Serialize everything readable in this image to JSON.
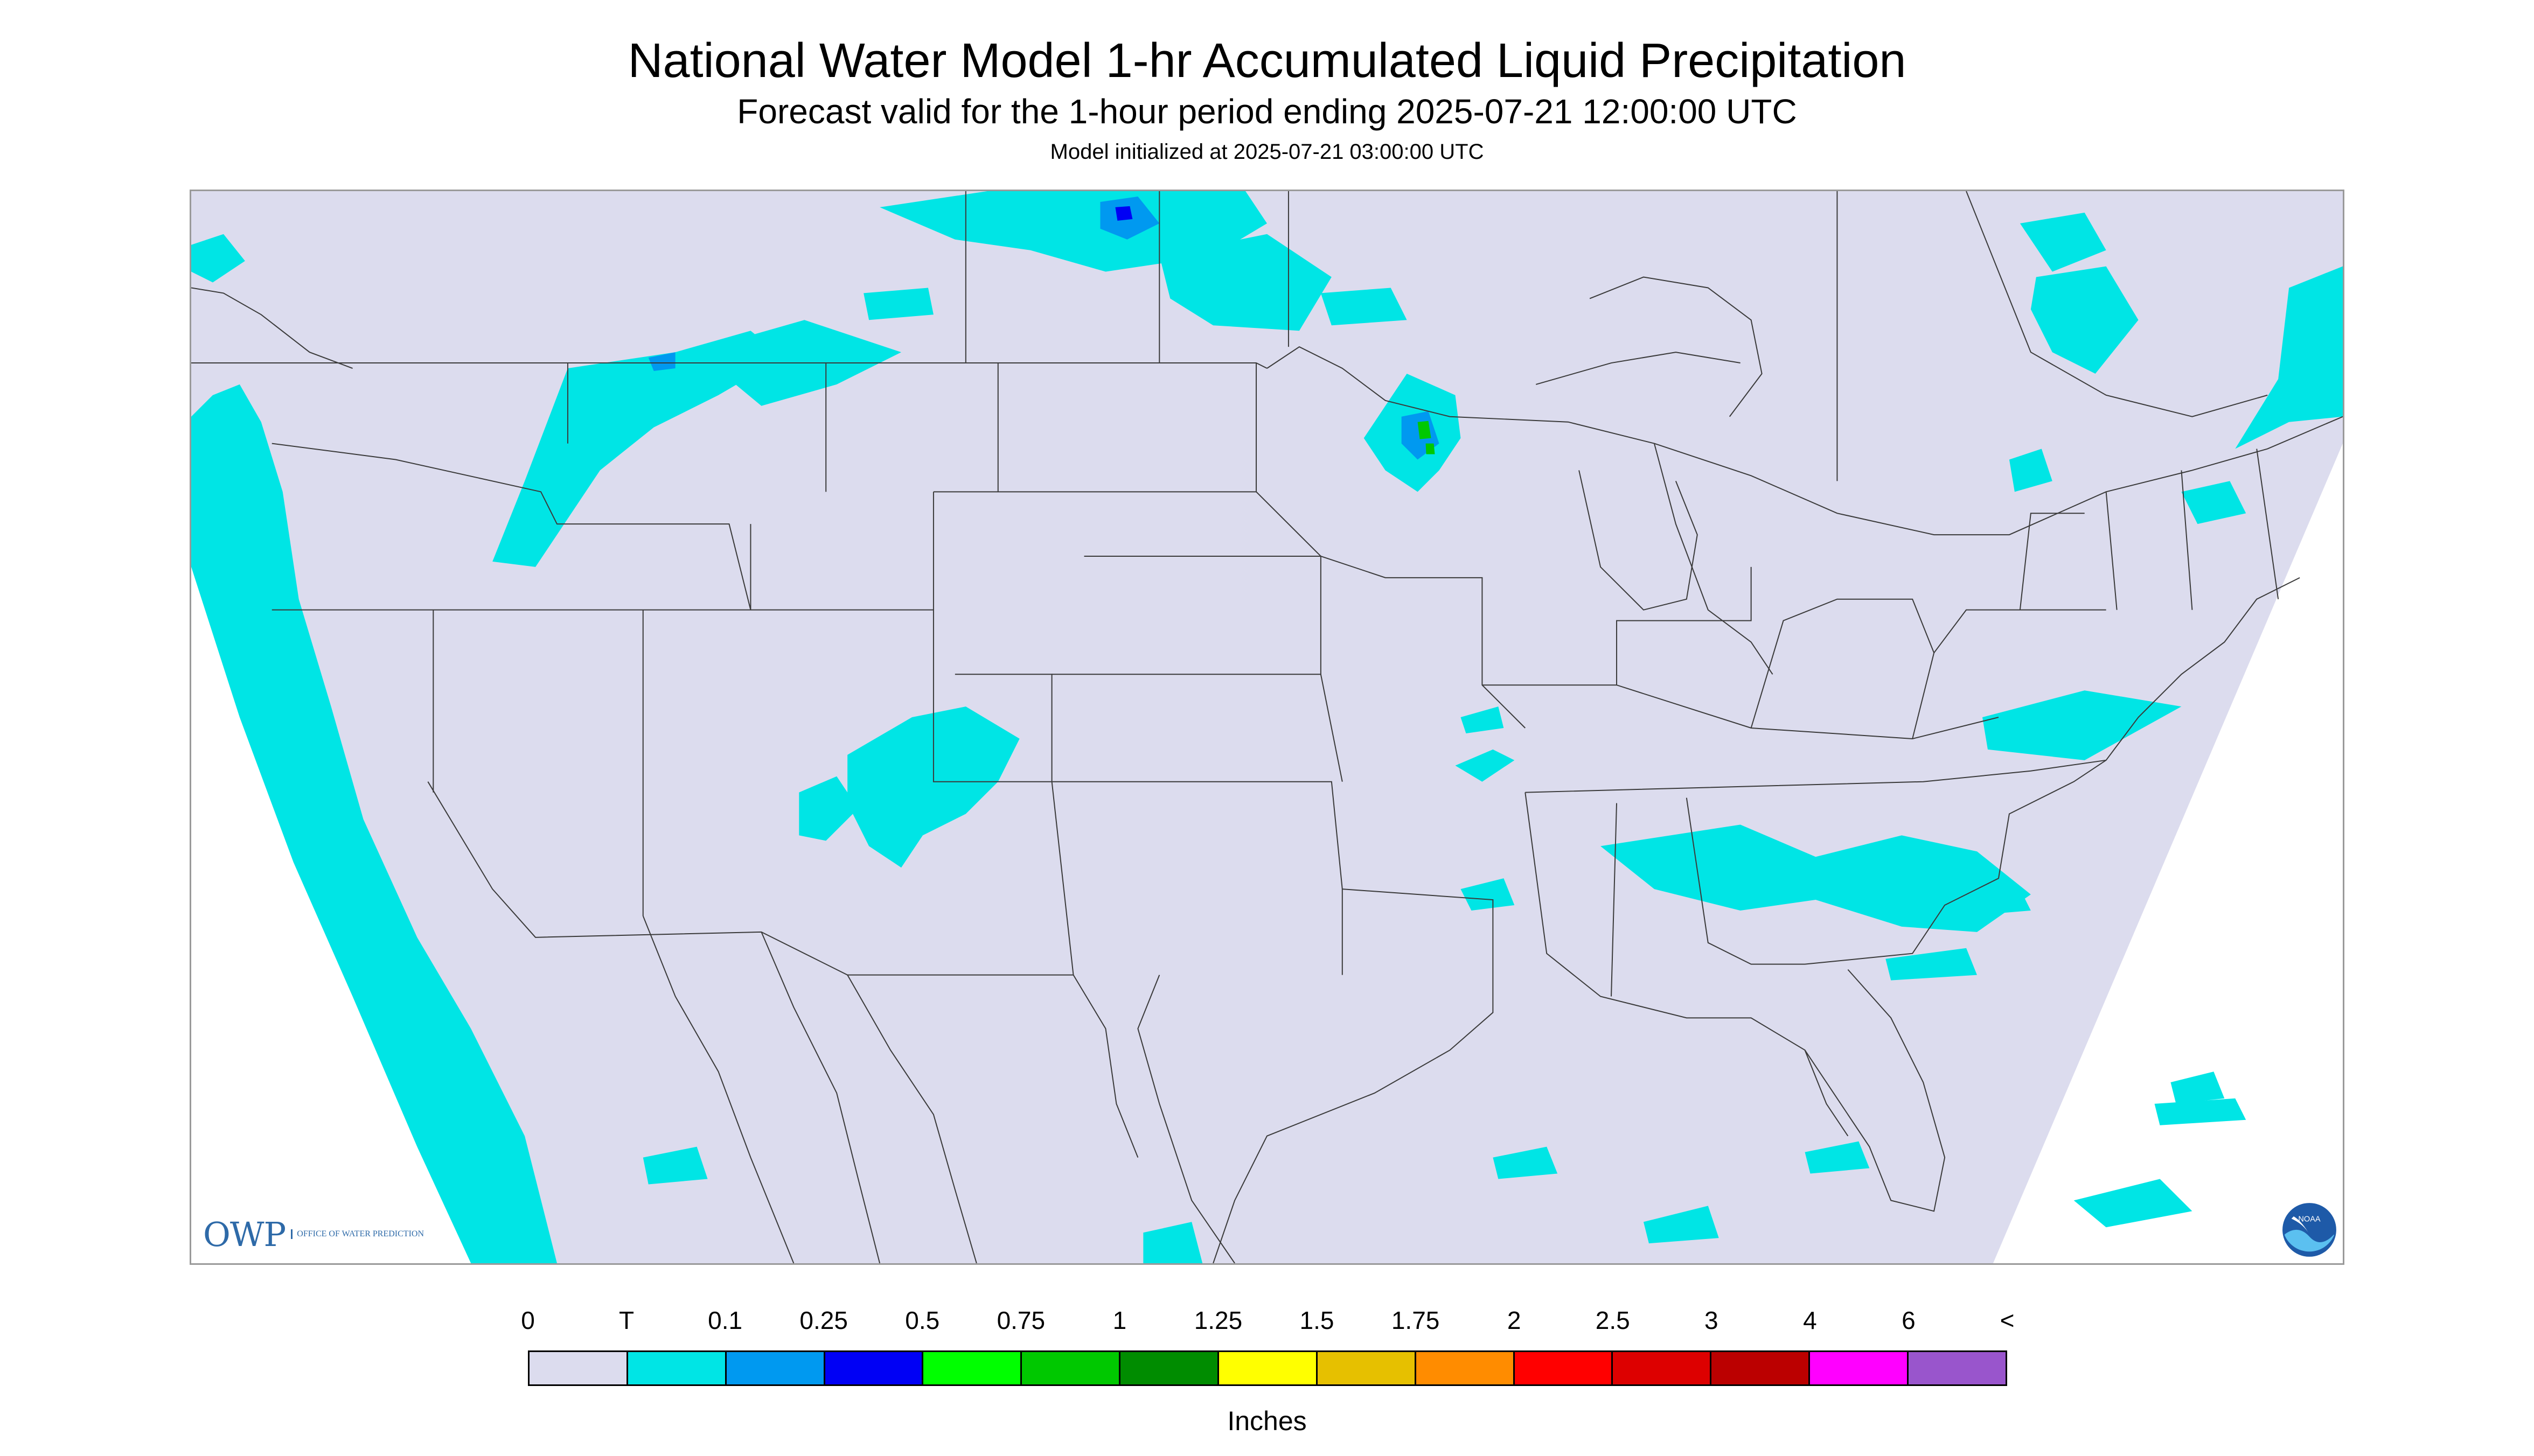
{
  "title": "National Water Model 1-hr Accumulated Liquid Precipitation",
  "subtitle": "Forecast valid for the 1-hour period ending 2025-07-21 12:00:00 UTC",
  "init": "Model initialized at 2025-07-21 03:00:00 UTC",
  "logos": {
    "owp_mark": "OWP",
    "owp_text": "OFFICE OF WATER PREDICTION",
    "noaa": "NOAA"
  },
  "colors": {
    "map_background": "#dcdcee",
    "outside_domain": "#ffffff",
    "boundary": "#3a3a3a"
  },
  "legend": {
    "units": "Inches",
    "labels": [
      "0",
      "T",
      "0.1",
      "0.25",
      "0.5",
      "0.75",
      "1",
      "1.25",
      "1.5",
      "1.75",
      "2",
      "2.5",
      "3",
      "4",
      "6",
      "<"
    ],
    "colors": [
      "#dcdcee",
      "#00e5e5",
      "#0099f0",
      "#0000f5",
      "#00ff00",
      "#00c800",
      "#008c00",
      "#ffff00",
      "#e6c000",
      "#ff8c00",
      "#ff0000",
      "#dd0000",
      "#bb0000",
      "#ff00ff",
      "#9955cc"
    ]
  }
}
